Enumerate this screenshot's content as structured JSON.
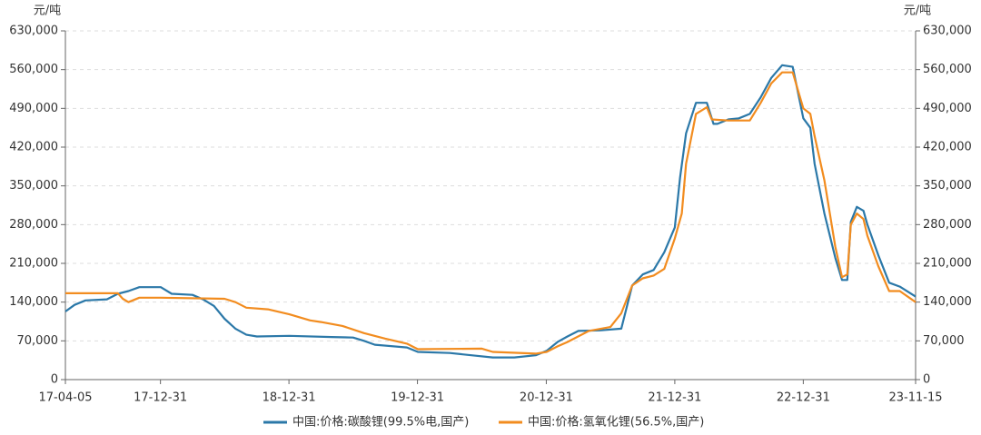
{
  "chart_data": {
    "type": "line",
    "y_label": "元/吨",
    "y2_label": "元/吨",
    "xlim": [
      "17-04-05",
      "23-11-15"
    ],
    "xticks": [
      "17-04-05",
      "17-12-31",
      "18-12-31",
      "19-12-31",
      "20-12-31",
      "21-12-31",
      "22-12-31",
      "23-11-15"
    ],
    "ylim": [
      0,
      630000
    ],
    "yticks": [
      0,
      {
        "value": 70000,
        "label": "70,000"
      },
      {
        "value": 140000,
        "label": "140,000"
      },
      {
        "value": 210000,
        "label": "210,000"
      },
      {
        "value": 280000,
        "label": "280,000"
      },
      {
        "value": 350000,
        "label": "350,000"
      },
      {
        "value": 420000,
        "label": "420,000"
      },
      {
        "value": 490000,
        "label": "490,000"
      },
      {
        "value": 560000,
        "label": "560,000"
      },
      {
        "value": 630000,
        "label": "630,000"
      }
    ],
    "y2lim": [
      0,
      630000
    ],
    "y2ticks": [
      0,
      {
        "value": 70000,
        "label": "70,000"
      },
      {
        "value": 140000,
        "label": "140,000"
      },
      {
        "value": 210000,
        "label": "210,000"
      },
      {
        "value": 280000,
        "label": "280,000"
      },
      {
        "value": 350000,
        "label": "350,000"
      },
      {
        "value": 420000,
        "label": "420,000"
      },
      {
        "value": 490000,
        "label": "490,000"
      },
      {
        "value": 560000,
        "label": "560,000"
      },
      {
        "value": 630000,
        "label": "630,000"
      }
    ],
    "grid": true,
    "legend": "bottom",
    "series": [
      {
        "name": "中国:价格:碳酸锂(99.5%电,国产)",
        "color": "#2b78a8",
        "x": [
          "17-04-05",
          "17-05-01",
          "17-06-01",
          "17-08-01",
          "17-09-01",
          "17-10-01",
          "17-11-01",
          "18-01-01",
          "18-02-01",
          "18-04-01",
          "18-05-01",
          "18-06-01",
          "18-07-01",
          "18-08-01",
          "18-09-01",
          "18-10-01",
          "19-01-01",
          "19-05-01",
          "19-07-01",
          "19-08-01",
          "19-09-01",
          "19-12-01",
          "20-01-01",
          "20-04-01",
          "20-06-01",
          "20-08-01",
          "20-10-01",
          "20-12-01",
          "21-01-01",
          "21-02-01",
          "21-03-01",
          "21-04-01",
          "21-06-01",
          "21-08-01",
          "21-09-01",
          "21-10-01",
          "21-11-01",
          "21-12-01",
          "21-12-31",
          "22-01-15",
          "22-02-01",
          "22-03-01",
          "22-04-01",
          "22-04-20",
          "22-05-01",
          "22-06-01",
          "22-07-01",
          "22-08-01",
          "22-09-01",
          "22-10-01",
          "22-11-01",
          "22-12-01",
          "22-12-31",
          "23-01-20",
          "23-02-01",
          "23-03-01",
          "23-04-01",
          "23-04-20",
          "23-05-05",
          "23-05-15",
          "23-06-01",
          "23-06-20",
          "23-07-01",
          "23-08-01",
          "23-09-01",
          "23-10-01",
          "23-11-15"
        ],
        "values": [
          123000,
          135000,
          143000,
          145000,
          155000,
          160000,
          167000,
          167000,
          155000,
          153000,
          145000,
          133000,
          110000,
          92000,
          81000,
          78000,
          79000,
          77000,
          76000,
          70000,
          63000,
          58000,
          50000,
          48000,
          44000,
          40000,
          40000,
          44000,
          52000,
          68000,
          78000,
          88000,
          89000,
          92000,
          170000,
          190000,
          198000,
          230000,
          275000,
          365000,
          445000,
          500000,
          500000,
          462000,
          462000,
          470000,
          472000,
          480000,
          510000,
          545000,
          568000,
          565000,
          472000,
          455000,
          390000,
          300000,
          220000,
          180000,
          180000,
          285000,
          312000,
          305000,
          280000,
          225000,
          175000,
          168000,
          150000
        ]
      },
      {
        "name": "中国:价格:氢氧化锂(56.5%,国产)",
        "color": "#f28c1f",
        "x": [
          "17-04-05",
          "17-07-01",
          "17-09-01",
          "17-09-15",
          "17-10-01",
          "17-11-01",
          "18-01-01",
          "18-07-01",
          "18-08-01",
          "18-09-01",
          "18-11-01",
          "19-01-01",
          "19-03-01",
          "19-04-01",
          "19-06-01",
          "19-08-01",
          "19-10-01",
          "19-12-01",
          "20-01-01",
          "20-07-01",
          "20-08-01",
          "20-12-01",
          "21-01-01",
          "21-02-01",
          "21-03-01",
          "21-05-01",
          "21-07-01",
          "21-08-01",
          "21-09-01",
          "21-10-01",
          "21-11-01",
          "21-12-01",
          "21-12-31",
          "22-01-20",
          "22-02-01",
          "22-03-01",
          "22-04-01",
          "22-04-15",
          "22-06-01",
          "22-08-01",
          "22-09-01",
          "22-10-01",
          "22-11-01",
          "22-12-01",
          "22-12-31",
          "23-01-20",
          "23-02-01",
          "23-03-01",
          "23-04-01",
          "23-04-20",
          "23-05-05",
          "23-05-15",
          "23-06-01",
          "23-06-20",
          "23-07-01",
          "23-08-01",
          "23-09-01",
          "23-10-01",
          "23-11-15"
        ],
        "values": [
          156000,
          156000,
          156000,
          146000,
          140000,
          148000,
          148000,
          146000,
          140000,
          130000,
          127000,
          118000,
          107000,
          104000,
          97000,
          84000,
          74000,
          65000,
          55000,
          56000,
          50000,
          47000,
          50000,
          60000,
          68000,
          88000,
          95000,
          120000,
          170000,
          183000,
          188000,
          200000,
          255000,
          300000,
          390000,
          480000,
          492000,
          470000,
          468000,
          468000,
          500000,
          535000,
          555000,
          555000,
          490000,
          480000,
          440000,
          360000,
          240000,
          185000,
          190000,
          280000,
          300000,
          290000,
          260000,
          205000,
          160000,
          160000,
          140000
        ]
      }
    ]
  }
}
